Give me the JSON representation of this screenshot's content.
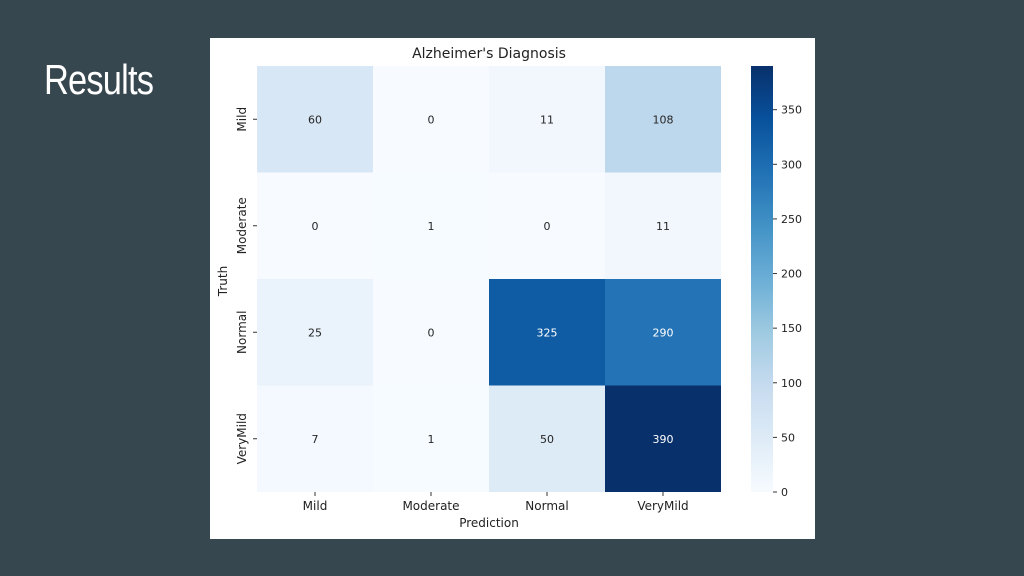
{
  "slide": {
    "title": "Results"
  },
  "chart_data": {
    "type": "heatmap",
    "title": "Alzheimer's Diagnosis",
    "xlabel": "Prediction",
    "ylabel": "Truth",
    "x_categories": [
      "Mild",
      "Moderate",
      "Normal",
      "VeryMild"
    ],
    "y_categories": [
      "Mild",
      "Moderate",
      "Normal",
      "VeryMild"
    ],
    "values": [
      [
        60,
        0,
        11,
        108
      ],
      [
        0,
        1,
        0,
        11
      ],
      [
        25,
        0,
        325,
        290
      ],
      [
        7,
        1,
        50,
        390
      ]
    ],
    "colormap": "Blues",
    "color_range": [
      0,
      390
    ],
    "colorbar_ticks": [
      0,
      50,
      100,
      150,
      200,
      250,
      300,
      350
    ]
  }
}
